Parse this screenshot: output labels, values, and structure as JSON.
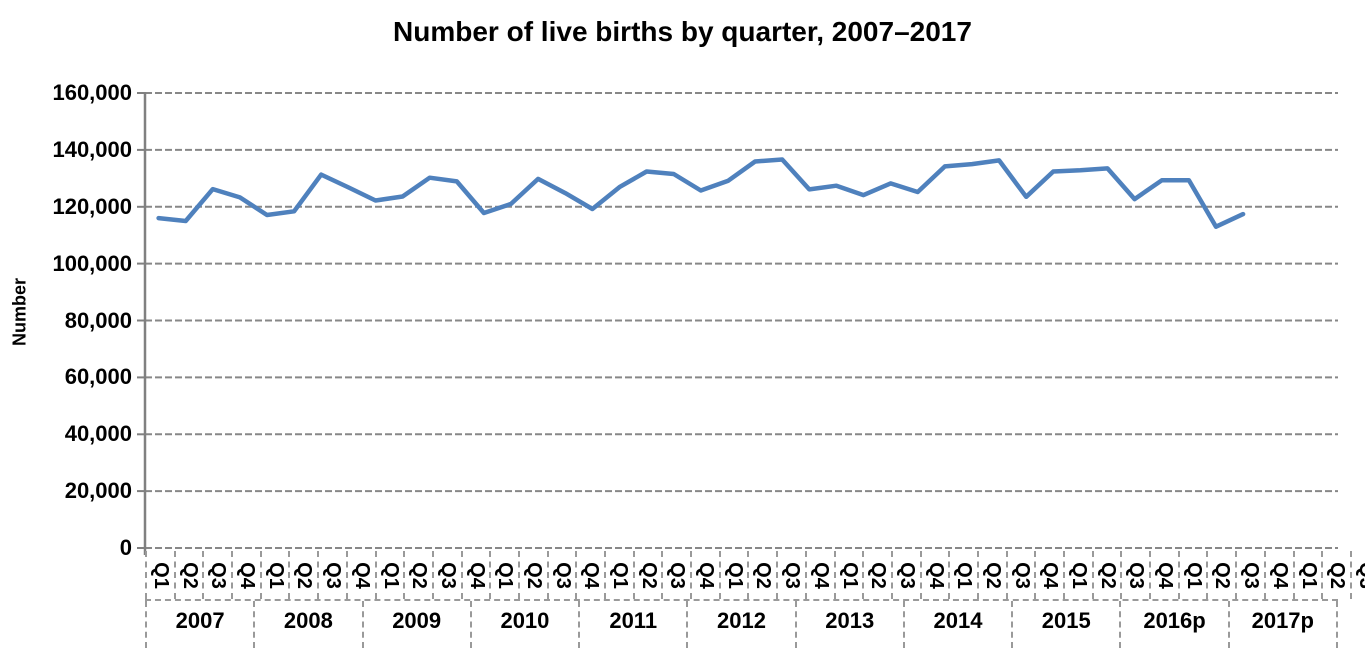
{
  "title": "Number of live births by quarter, 2007–2017",
  "colors": {
    "series": "#4F81BD",
    "grid": "#878787",
    "axis": "#808080",
    "label_border": "#9a9a9a",
    "text": "#000000"
  },
  "chart_data": {
    "type": "line",
    "title": "Number of live births by quarter, 2007–2017",
    "xlabel": "",
    "ylabel": "Number",
    "ylim": [
      0,
      160000
    ],
    "grid": "horizontal-dashed",
    "legend": "none",
    "yticks": [
      {
        "value": 160000,
        "label": "160,000"
      },
      {
        "value": 140000,
        "label": "140,000"
      },
      {
        "value": 120000,
        "label": "120,000"
      },
      {
        "value": 100000,
        "label": "100,000"
      },
      {
        "value": 80000,
        "label": "80,000"
      },
      {
        "value": 60000,
        "label": "60,000"
      },
      {
        "value": 40000,
        "label": "40,000"
      },
      {
        "value": 20000,
        "label": "20,000"
      },
      {
        "value": 0,
        "label": "0"
      }
    ],
    "year_groups": [
      {
        "label": "2007",
        "quarters": [
          "Q1",
          "Q2",
          "Q3",
          "Q4"
        ]
      },
      {
        "label": "2008",
        "quarters": [
          "Q1",
          "Q2",
          "Q3",
          "Q4"
        ]
      },
      {
        "label": "2009",
        "quarters": [
          "Q1",
          "Q2",
          "Q3",
          "Q4"
        ]
      },
      {
        "label": "2010",
        "quarters": [
          "Q1",
          "Q2",
          "Q3",
          "Q4"
        ]
      },
      {
        "label": "2011",
        "quarters": [
          "Q1",
          "Q2",
          "Q3",
          "Q4"
        ]
      },
      {
        "label": "2012",
        "quarters": [
          "Q1",
          "Q2",
          "Q3",
          "Q4"
        ]
      },
      {
        "label": "2013",
        "quarters": [
          "Q1",
          "Q2",
          "Q3",
          "Q4"
        ]
      },
      {
        "label": "2014",
        "quarters": [
          "Q1",
          "Q2",
          "Q3",
          "Q4"
        ]
      },
      {
        "label": "2015",
        "quarters": [
          "Q1",
          "Q2",
          "Q3",
          "Q4"
        ]
      },
      {
        "label": "2016p",
        "quarters": [
          "Q1",
          "Q2",
          "Q3",
          "Q4"
        ]
      },
      {
        "label": "2017p",
        "quarters": [
          "Q1",
          "Q2",
          "Q3",
          "Q4"
        ]
      }
    ],
    "series": [
      {
        "name": "Live births",
        "color": "#4F81BD",
        "last_point": "2017 Q1",
        "values": [
          116000,
          115000,
          126200,
          123300,
          117100,
          118400,
          131300,
          126800,
          122200,
          123600,
          130200,
          128900,
          117800,
          121000,
          129800,
          124800,
          119200,
          126900,
          132400,
          131500,
          125700,
          129100,
          135900,
          136600,
          126100,
          127400,
          124100,
          128200,
          125200,
          134200,
          135000,
          136300,
          123500,
          132400,
          132800,
          133500,
          122700,
          129300,
          129300,
          113000,
          117400
        ]
      }
    ]
  }
}
